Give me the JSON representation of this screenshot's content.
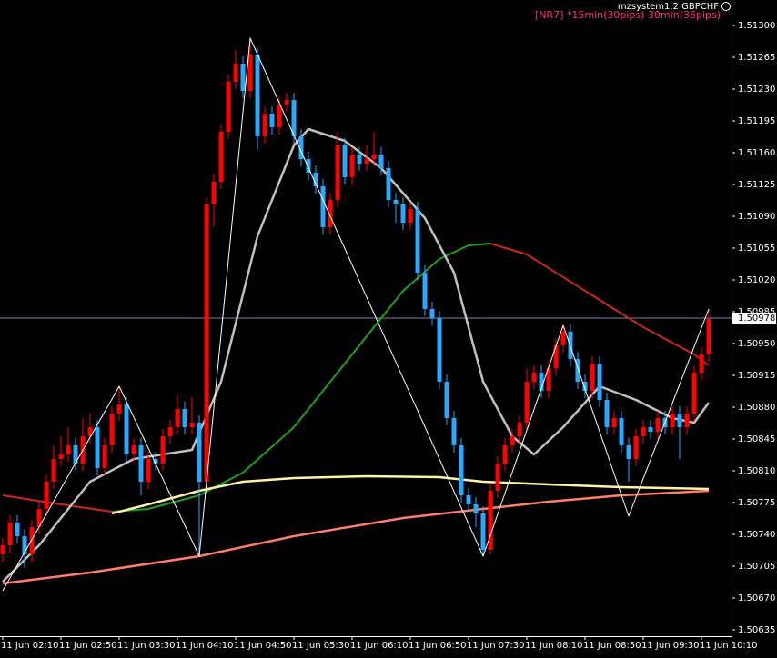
{
  "chart_data": {
    "type": "candlestick",
    "title": "mzsystem1.2 GBPCHF",
    "subtitle": "[NR7]  *15min(30pips)  30min(36pips)",
    "last_price": 1.50978,
    "up_color": "#ff0000",
    "down_color": "#2aa8ff",
    "ylim": [
      1.50628,
      1.51328
    ],
    "yticks": [
      {
        "value": 1.513,
        "label": "1.51300"
      },
      {
        "value": 1.51265,
        "label": "1.51265"
      },
      {
        "value": 1.5123,
        "label": "1.51230"
      },
      {
        "value": 1.51195,
        "label": "1.51195"
      },
      {
        "value": 1.5116,
        "label": "1.51160"
      },
      {
        "value": 1.51125,
        "label": "1.51125"
      },
      {
        "value": 1.5109,
        "label": "1.51090"
      },
      {
        "value": 1.51055,
        "label": "1.51055"
      },
      {
        "value": 1.5102,
        "label": "1.51020"
      },
      {
        "value": 1.50985,
        "label": "1.50985"
      },
      {
        "value": 1.5095,
        "label": "1.50950"
      },
      {
        "value": 1.50915,
        "label": "1.50915"
      },
      {
        "value": 1.5088,
        "label": "1.50880"
      },
      {
        "value": 1.50845,
        "label": "1.50845"
      },
      {
        "value": 1.5081,
        "label": "1.50810"
      },
      {
        "value": 1.50775,
        "label": "1.50775"
      },
      {
        "value": 1.5074,
        "label": "1.50740"
      },
      {
        "value": 1.50705,
        "label": "1.50705"
      },
      {
        "value": 1.5067,
        "label": "1.50670"
      },
      {
        "value": 1.50635,
        "label": "1.50635"
      }
    ],
    "categories": [
      "11 Jun 02:10",
      null,
      null,
      null,
      null,
      null,
      null,
      null,
      "11 Jun 02:50",
      null,
      null,
      null,
      null,
      null,
      null,
      null,
      "11 Jun 03:30",
      null,
      null,
      null,
      null,
      null,
      null,
      null,
      "11 Jun 04:10",
      null,
      null,
      null,
      null,
      null,
      null,
      null,
      "11 Jun 04:50",
      null,
      null,
      null,
      null,
      null,
      null,
      null,
      "11 Jun 05:30",
      null,
      null,
      null,
      null,
      null,
      null,
      null,
      "11 Jun 06:10",
      null,
      null,
      null,
      null,
      null,
      null,
      null,
      "11 Jun 06:50",
      null,
      null,
      null,
      null,
      null,
      null,
      null,
      "11 Jun 07:30",
      null,
      null,
      null,
      null,
      null,
      null,
      null,
      "11 Jun 08:10",
      null,
      null,
      null,
      null,
      null,
      null,
      null,
      "11 Jun 08:50",
      null,
      null,
      null,
      null,
      null,
      null,
      null,
      "11 Jun 09:30",
      null,
      null,
      null,
      null,
      null,
      null,
      null,
      "11 Jun 10:10",
      null
    ],
    "open": [
      1.50718,
      1.50728,
      1.50753,
      1.50738,
      1.50718,
      1.50748,
      1.50768,
      1.50798,
      1.50823,
      1.50828,
      1.50838,
      1.50818,
      1.50848,
      1.50858,
      1.50813,
      1.50838,
      1.50873,
      1.50883,
      1.50828,
      1.50838,
      1.50798,
      1.50823,
      1.50818,
      1.50848,
      1.50858,
      1.50878,
      1.50858,
      1.50863,
      1.50798,
      1.51103,
      1.51128,
      1.51183,
      1.51238,
      1.51258,
      1.51228,
      1.51268,
      1.51178,
      1.51203,
      1.51188,
      1.51213,
      1.51218,
      1.51178,
      1.51153,
      1.51138,
      1.51123,
      1.51078,
      1.51108,
      1.51168,
      1.51133,
      1.51158,
      1.51148,
      1.51153,
      1.51158,
      1.51143,
      1.51108,
      1.51103,
      1.51083,
      1.51098,
      1.51028,
      1.50988,
      1.50978,
      1.50908,
      1.50868,
      1.50838,
      1.50783,
      1.50773,
      1.50763,
      1.50723,
      1.50788,
      1.50818,
      1.50838,
      1.50848,
      1.50863,
      1.50908,
      1.50918,
      1.50898,
      1.50923,
      1.50948,
      1.50963,
      1.50933,
      1.50908,
      1.50898,
      1.50928,
      1.50888,
      1.50858,
      1.50868,
      1.50838,
      1.50823,
      1.50848,
      1.50858,
      1.50853,
      1.50868,
      1.50858,
      1.50873,
      1.50858,
      1.50873,
      1.50918,
      1.50938
    ],
    "high": [
      1.50736,
      1.50761,
      1.50761,
      1.50746,
      1.50756,
      1.50776,
      1.50806,
      1.50838,
      1.50848,
      1.50858,
      1.50846,
      1.50868,
      1.50873,
      1.50866,
      1.50846,
      1.50881,
      1.50903,
      1.50891,
      1.50846,
      1.50846,
      1.50831,
      1.50831,
      1.50856,
      1.50866,
      1.50893,
      1.50886,
      1.50891,
      1.50871,
      1.51111,
      1.51136,
      1.51191,
      1.51246,
      1.51273,
      1.51266,
      1.51286,
      1.51276,
      1.51211,
      1.51211,
      1.51221,
      1.51226,
      1.51226,
      1.51186,
      1.51161,
      1.51146,
      1.51131,
      1.51116,
      1.51183,
      1.51176,
      1.51166,
      1.51166,
      1.51168,
      1.51183,
      1.51166,
      1.51151,
      1.51116,
      1.51111,
      1.51106,
      1.51106,
      1.51036,
      1.50996,
      1.50986,
      1.50916,
      1.50876,
      1.50846,
      1.50791,
      1.50781,
      1.50771,
      1.50796,
      1.50826,
      1.50846,
      1.50856,
      1.50871,
      1.50923,
      1.50926,
      1.50926,
      1.50931,
      1.50956,
      1.5097,
      1.50971,
      1.50941,
      1.50916,
      1.50936,
      1.50936,
      1.50896,
      1.50876,
      1.50876,
      1.50846,
      1.50856,
      1.50866,
      1.50866,
      1.50876,
      1.50876,
      1.50881,
      1.50881,
      1.50881,
      1.50926,
      1.50946,
      1.50988
    ],
    "low": [
      1.5071,
      1.5072,
      1.5073,
      1.50703,
      1.5071,
      1.5074,
      1.5076,
      1.5079,
      1.50815,
      1.5082,
      1.5081,
      1.5081,
      1.5084,
      1.50805,
      1.50805,
      1.5083,
      1.50865,
      1.5082,
      1.5082,
      1.50783,
      1.5079,
      1.5081,
      1.5081,
      1.5084,
      1.5085,
      1.5085,
      1.5085,
      1.50716,
      1.5079,
      1.51078,
      1.5112,
      1.51175,
      1.5123,
      1.5122,
      1.5122,
      1.51163,
      1.5117,
      1.5118,
      1.5118,
      1.51205,
      1.5117,
      1.51145,
      1.5113,
      1.51115,
      1.5107,
      1.5107,
      1.511,
      1.51125,
      1.51125,
      1.5114,
      1.5114,
      1.51145,
      1.51135,
      1.511,
      1.51083,
      1.51075,
      1.51075,
      1.5102,
      1.5098,
      1.5097,
      1.509,
      1.5086,
      1.5083,
      1.50775,
      1.50765,
      1.50748,
      1.50716,
      1.50718,
      1.5078,
      1.5081,
      1.5083,
      1.5084,
      1.50855,
      1.509,
      1.5089,
      1.5089,
      1.50915,
      1.5094,
      1.50925,
      1.509,
      1.5089,
      1.5089,
      1.5088,
      1.5085,
      1.5085,
      1.5083,
      1.50798,
      1.50815,
      1.5084,
      1.50845,
      1.50845,
      1.5085,
      1.5085,
      1.50823,
      1.5085,
      1.50865,
      1.5091,
      1.5093
    ],
    "close": [
      1.50728,
      1.50753,
      1.50738,
      1.50718,
      1.50748,
      1.50768,
      1.50798,
      1.50823,
      1.50828,
      1.50838,
      1.50818,
      1.50848,
      1.50858,
      1.50813,
      1.50838,
      1.50873,
      1.50883,
      1.50828,
      1.50838,
      1.50798,
      1.50823,
      1.50818,
      1.50848,
      1.50858,
      1.50878,
      1.50858,
      1.50863,
      1.50798,
      1.51103,
      1.51128,
      1.51183,
      1.51238,
      1.51258,
      1.51228,
      1.51268,
      1.51178,
      1.51203,
      1.51188,
      1.51213,
      1.51218,
      1.51178,
      1.51153,
      1.51138,
      1.51123,
      1.51078,
      1.51108,
      1.51168,
      1.51133,
      1.51158,
      1.51148,
      1.51153,
      1.51158,
      1.51143,
      1.51108,
      1.51103,
      1.51083,
      1.51098,
      1.51028,
      1.50988,
      1.50978,
      1.50908,
      1.50868,
      1.50838,
      1.50783,
      1.50773,
      1.50763,
      1.50723,
      1.50788,
      1.50818,
      1.50838,
      1.50848,
      1.50863,
      1.50908,
      1.50918,
      1.50898,
      1.50923,
      1.50948,
      1.50963,
      1.50933,
      1.50908,
      1.50898,
      1.50928,
      1.50888,
      1.50858,
      1.50868,
      1.50838,
      1.50823,
      1.50848,
      1.50858,
      1.50853,
      1.50868,
      1.50858,
      1.50873,
      1.50858,
      1.50873,
      1.50918,
      1.50938,
      1.50977
    ],
    "overlays": [
      {
        "color": "#ff7f6a",
        "x": [
          0,
          12,
          27,
          40,
          55,
          66,
          75,
          85,
          97
        ],
        "values": [
          1.50686,
          1.50698,
          1.50716,
          1.50738,
          1.50758,
          1.50768,
          1.50776,
          1.50783,
          1.50788
        ]
      },
      {
        "color": "#fff2a8",
        "x": [
          15,
          20,
          27,
          33,
          40,
          50,
          60,
          66,
          75,
          85,
          97
        ],
        "values": [
          1.50763,
          1.50773,
          1.50788,
          1.50798,
          1.50802,
          1.50804,
          1.50803,
          1.50798,
          1.50795,
          1.50792,
          1.5079
        ]
      },
      {
        "color": "#c0c0c0",
        "x": [
          0,
          5,
          12,
          18,
          26,
          30,
          35,
          40,
          42,
          47,
          52,
          58,
          62,
          66,
          70,
          73,
          77,
          82,
          87,
          92,
          95,
          97
        ],
        "values": [
          1.50688,
          1.50728,
          1.50798,
          1.50823,
          1.50833,
          1.50908,
          1.51068,
          1.51168,
          1.51186,
          1.51173,
          1.51143,
          1.51088,
          1.51028,
          1.50908,
          1.50848,
          1.50828,
          1.50858,
          1.50903,
          1.50888,
          1.50868,
          1.50863,
          1.50885
        ]
      },
      {
        "color": "#ffffff",
        "x": [
          0,
          16,
          27,
          34,
          66,
          77,
          86,
          97
        ],
        "values": [
          1.50678,
          1.50903,
          1.50716,
          1.51286,
          1.50716,
          1.5097,
          1.5076,
          1.50988
        ]
      }
    ],
    "slope_line": {
      "rise_color": "#1fa01f",
      "fall_color": "#c8281e",
      "x": [
        0,
        8,
        15,
        20,
        27,
        33,
        40,
        45,
        50,
        55,
        60,
        64,
        67,
        72,
        80,
        88,
        95,
        97
      ],
      "values": [
        1.50783,
        1.50773,
        1.50765,
        1.50768,
        1.50783,
        1.50808,
        1.50858,
        1.50908,
        1.50958,
        1.51008,
        1.51043,
        1.51058,
        1.5106,
        1.51048,
        1.51008,
        1.50968,
        1.50938,
        1.50926
      ]
    }
  }
}
